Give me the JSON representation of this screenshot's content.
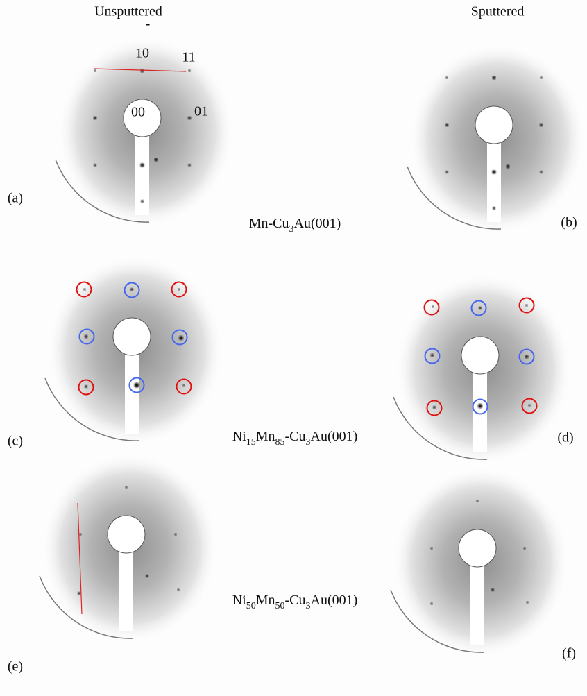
{
  "column_headers": [
    "Unsputtered",
    "Sputtered"
  ],
  "spot_labels": [
    "-",
    "10",
    "11",
    "00",
    "01"
  ],
  "panel_labels": [
    "(a)",
    "(b)",
    "(c)",
    "(d)",
    "(e)",
    "(f)"
  ],
  "row_captions": [
    {
      "parts": [
        {
          "text": "Mn-Cu",
          "sub": false
        },
        {
          "text": "3",
          "sub": true
        },
        {
          "text": "Au(001)",
          "sub": false
        }
      ]
    },
    {
      "parts": [
        {
          "text": "Ni",
          "sub": false
        },
        {
          "text": "15",
          "sub": true
        },
        {
          "text": "Mn",
          "sub": false
        },
        {
          "text": "85",
          "sub": true
        },
        {
          "text": "-Cu",
          "sub": false
        },
        {
          "text": "3",
          "sub": true
        },
        {
          "text": "Au(001)",
          "sub": false
        }
      ]
    },
    {
      "parts": [
        {
          "text": "Ni",
          "sub": false
        },
        {
          "text": "50",
          "sub": true
        },
        {
          "text": "Mn",
          "sub": false
        },
        {
          "text": "50",
          "sub": true
        },
        {
          "text": "-Cu",
          "sub": false
        },
        {
          "text": "3",
          "sub": true
        },
        {
          "text": "Au(001)",
          "sub": false
        }
      ]
    }
  ]
}
